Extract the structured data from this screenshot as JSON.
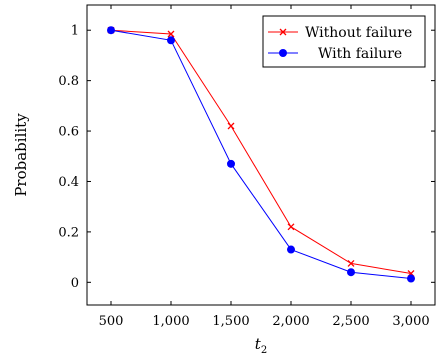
{
  "chart_data": {
    "type": "line",
    "title": "",
    "xlabel": "t",
    "xlabel_subscript": "2",
    "ylabel": "Probability",
    "x": [
      500,
      1000,
      1500,
      2000,
      2500,
      3000
    ],
    "xticks": [
      500,
      1000,
      1500,
      2000,
      2500,
      3000
    ],
    "xtick_labels": [
      "500",
      "1,000",
      "1,500",
      "2,000",
      "2,500",
      "3,000"
    ],
    "yticks": [
      0,
      0.2,
      0.4,
      0.6,
      0.8,
      1
    ],
    "ytick_labels": [
      "0",
      "0.2",
      "0.4",
      "0.6",
      "0.8",
      "1"
    ],
    "xlim": [
      300,
      3200
    ],
    "ylim": [
      -0.09,
      1.1
    ],
    "grid": false,
    "legend_position": "top-right",
    "series": [
      {
        "name": "Without failure",
        "color": "#ff0000",
        "marker": "x",
        "values": [
          1.0,
          0.985,
          0.62,
          0.22,
          0.075,
          0.035
        ]
      },
      {
        "name": "With failure",
        "color": "#0000ff",
        "marker": "circle",
        "values": [
          1.0,
          0.96,
          0.47,
          0.13,
          0.04,
          0.015
        ]
      }
    ]
  }
}
